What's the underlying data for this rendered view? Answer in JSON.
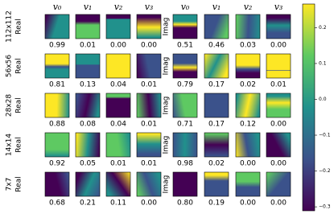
{
  "columns": [
    "v₀",
    "v₁",
    "v₂",
    "v₃"
  ],
  "part_labels": {
    "real": "Real",
    "imag": "Imag"
  },
  "rows": [
    {
      "label": "112x112",
      "real": [
        "0.99",
        "0.01",
        "0.00",
        "0.00"
      ],
      "imag": [
        "0.51",
        "0.46",
        "0.03",
        "0.00"
      ]
    },
    {
      "label": "56x56",
      "real": [
        "0.81",
        "0.13",
        "0.04",
        "0.01"
      ],
      "imag": [
        "0.79",
        "0.17",
        "0.02",
        "0.01"
      ]
    },
    {
      "label": "28x28",
      "real": [
        "0.88",
        "0.08",
        "0.04",
        "0.01"
      ],
      "imag": [
        "0.71",
        "0.17",
        "0.12",
        "0.00"
      ]
    },
    {
      "label": "14x14",
      "real": [
        "0.92",
        "0.05",
        "0.01",
        "0.01"
      ],
      "imag": [
        "0.98",
        "0.02",
        "0.00",
        "0.00"
      ]
    },
    {
      "label": "7x7",
      "real": [
        "0.68",
        "0.21",
        "0.11",
        "0.00"
      ],
      "imag": [
        "0.80",
        "0.19",
        "0.00",
        "0.00"
      ]
    }
  ],
  "colorbar": {
    "ylim": [
      -0.311,
      0.266
    ],
    "yticks": [
      0.2,
      0.1,
      {
        "value": 0,
        "label": "0.0"
      },
      {
        "value": -0.1,
        "label": "−0.1"
      },
      {
        "value": -0.2,
        "label": "−0.2"
      },
      {
        "value": -0.3,
        "label": "−0.3"
      }
    ]
  }
}
